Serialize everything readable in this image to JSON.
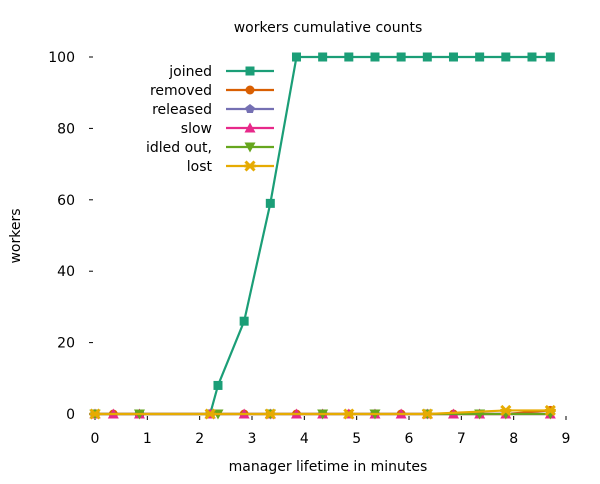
{
  "chart_data": {
    "type": "line",
    "title": "workers cumulative counts",
    "xlabel": "manager lifetime in minutes",
    "ylabel": "workers",
    "xlim": [
      0,
      9
    ],
    "ylim": [
      0,
      100
    ],
    "x_ticks": [
      "0",
      "1",
      "2",
      "3",
      "4",
      "5",
      "6",
      "7",
      "8",
      "9"
    ],
    "y_ticks": [
      "0",
      "20",
      "40",
      "60",
      "80",
      "100"
    ],
    "grid": false,
    "legend_position": "top-left",
    "series": [
      {
        "name": "joined",
        "color": "#1b9e77",
        "marker": "square",
        "x": [
          0,
          0.85,
          2.2,
          2.35,
          2.85,
          3.35,
          3.85,
          4.35,
          4.85,
          5.35,
          5.85,
          6.35,
          6.85,
          7.35,
          7.85,
          8.35,
          8.7
        ],
        "y": [
          0,
          0,
          0,
          8,
          26,
          59,
          100,
          100,
          100,
          100,
          100,
          100,
          100,
          100,
          100,
          100,
          100
        ]
      },
      {
        "name": "removed",
        "color": "#d95f02",
        "marker": "circle",
        "x": [
          0,
          0.35,
          0.85,
          2.2,
          2.85,
          3.35,
          3.85,
          4.35,
          4.85,
          5.35,
          5.85,
          6.35,
          6.85,
          7.35,
          7.85,
          8.7
        ],
        "y": [
          0,
          0,
          0,
          0,
          0,
          0,
          0,
          0,
          0,
          0,
          0,
          0,
          0,
          0,
          0,
          1
        ]
      },
      {
        "name": "released",
        "color": "#7570b3",
        "marker": "pentagon",
        "x": [
          0,
          0.85,
          2.2,
          3.35,
          4.35,
          5.35,
          6.35,
          7.35,
          8.7
        ],
        "y": [
          0,
          0,
          0,
          0,
          0,
          0,
          0,
          0,
          0
        ]
      },
      {
        "name": "slow",
        "color": "#e7298a",
        "marker": "triangle-up",
        "x": [
          0,
          0.35,
          0.85,
          2.2,
          2.85,
          3.35,
          3.85,
          4.35,
          4.85,
          5.35,
          5.85,
          6.35,
          6.85,
          7.35,
          7.85,
          8.7
        ],
        "y": [
          0,
          0,
          0,
          0,
          0,
          0,
          0,
          0,
          0,
          0,
          0,
          0,
          0,
          0,
          0,
          0
        ]
      },
      {
        "name": "idled out,",
        "color": "#66a61e",
        "marker": "triangle-down",
        "x": [
          0,
          0.85,
          2.35,
          3.35,
          4.35,
          5.35,
          6.35,
          7.35,
          7.85,
          8.7
        ],
        "y": [
          0,
          0,
          0,
          0,
          0,
          0,
          0,
          0,
          0,
          0
        ]
      },
      {
        "name": "lost",
        "color": "#e6ab02",
        "marker": "star",
        "x": [
          0,
          2.2,
          3.35,
          4.85,
          6.35,
          7.85,
          8.7
        ],
        "y": [
          0,
          0,
          0,
          0,
          0,
          1,
          1
        ]
      }
    ]
  }
}
